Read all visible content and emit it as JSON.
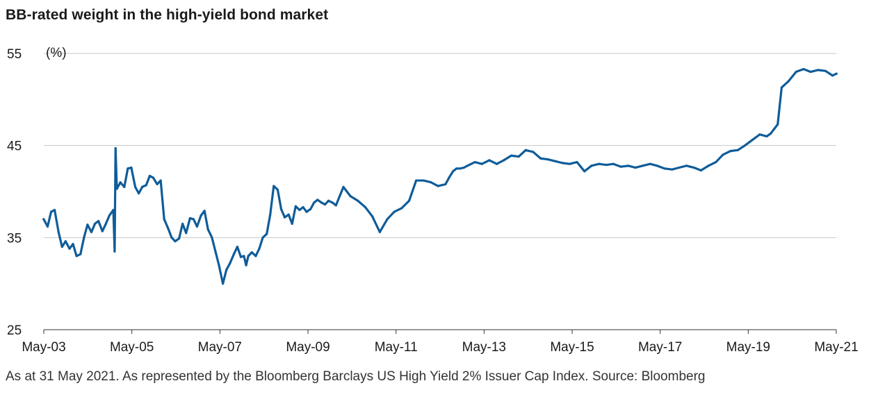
{
  "title": "BB-rated weight in the high-yield bond market",
  "footnote": "As at 31 May 2021. As represented by the Bloomberg Barclays US High Yield 2% Issuer Cap Index. Source: Bloomberg",
  "colors": {
    "line": "#0f5c99",
    "grid": "#c8c8c8",
    "axis": "#333333",
    "text": "#1a1a1a"
  },
  "chart_data": {
    "type": "line",
    "title": "BB-rated weight in the high-yield bond market",
    "ylabel": "(%)",
    "xlabel": "",
    "ylim": [
      25,
      55
    ],
    "yticks": [
      25,
      35,
      45,
      55
    ],
    "xlim": [
      2003.333,
      2021.417
    ],
    "xticks": [
      "May-03",
      "May-05",
      "May-07",
      "May-09",
      "May-11",
      "May-13",
      "May-15",
      "May-17",
      "May-19",
      "May-21"
    ],
    "grid": "horizontal",
    "legend": "none",
    "series": [
      {
        "x": [
          2003.33,
          2003.42,
          2003.5,
          2003.58,
          2003.67,
          2003.75,
          2003.83,
          2003.92,
          2004.0,
          2004.08,
          2004.17,
          2004.25,
          2004.33,
          2004.42,
          2004.5,
          2004.58,
          2004.67,
          2004.75,
          2004.83,
          2004.92,
          2004.95,
          2004.97,
          2005.0,
          2005.08,
          2005.17,
          2005.25,
          2005.33,
          2005.42,
          2005.5,
          2005.58,
          2005.67,
          2005.75,
          2005.83,
          2005.92,
          2006.0,
          2006.08,
          2006.17,
          2006.25,
          2006.33,
          2006.42,
          2006.5,
          2006.58,
          2006.67,
          2006.75,
          2006.83,
          2006.92,
          2007.0,
          2007.08,
          2007.17,
          2007.25,
          2007.33,
          2007.42,
          2007.5,
          2007.58,
          2007.67,
          2007.75,
          2007.83,
          2007.9,
          2007.95,
          2008.0,
          2008.08,
          2008.17,
          2008.25,
          2008.33,
          2008.42,
          2008.5,
          2008.58,
          2008.67,
          2008.75,
          2008.83,
          2008.92,
          2009.0,
          2009.08,
          2009.17,
          2009.25,
          2009.33,
          2009.42,
          2009.5,
          2009.58,
          2009.67,
          2009.75,
          2009.83,
          2009.92,
          2010.0,
          2010.17,
          2010.33,
          2010.5,
          2010.67,
          2010.83,
          2011.0,
          2011.17,
          2011.33,
          2011.5,
          2011.67,
          2011.83,
          2012.0,
          2012.17,
          2012.33,
          2012.5,
          2012.58,
          2012.67,
          2012.75,
          2012.83,
          2012.92,
          2013.0,
          2013.17,
          2013.33,
          2013.5,
          2013.67,
          2013.83,
          2014.0,
          2014.17,
          2014.33,
          2014.5,
          2014.67,
          2014.83,
          2015.0,
          2015.17,
          2015.33,
          2015.5,
          2015.67,
          2015.83,
          2016.0,
          2016.17,
          2016.33,
          2016.5,
          2016.67,
          2016.83,
          2017.0,
          2017.17,
          2017.33,
          2017.5,
          2017.67,
          2017.83,
          2018.0,
          2018.17,
          2018.33,
          2018.5,
          2018.67,
          2018.83,
          2019.0,
          2019.17,
          2019.33,
          2019.5,
          2019.67,
          2019.83,
          2019.92,
          2020.0,
          2020.08,
          2020.17,
          2020.33,
          2020.5,
          2020.67,
          2020.83,
          2021.0,
          2021.17,
          2021.33,
          2021.42
        ],
        "values": [
          37.0,
          36.2,
          37.8,
          38.0,
          35.6,
          34.0,
          34.6,
          33.8,
          34.3,
          33.0,
          33.2,
          35.0,
          36.4,
          35.6,
          36.5,
          36.8,
          35.7,
          36.5,
          37.4,
          38.0,
          33.5,
          44.7,
          40.3,
          41.0,
          40.5,
          42.5,
          42.6,
          40.5,
          39.8,
          40.5,
          40.7,
          41.7,
          41.5,
          40.8,
          41.2,
          37.0,
          36.0,
          35.0,
          34.6,
          34.9,
          36.5,
          35.5,
          37.1,
          37.0,
          36.2,
          37.4,
          37.9,
          35.9,
          35.0,
          33.5,
          32.0,
          30.0,
          31.5,
          32.2,
          33.2,
          34.0,
          32.9,
          33.0,
          32.0,
          33.0,
          33.4,
          33.0,
          33.8,
          35.0,
          35.4,
          37.5,
          40.6,
          40.2,
          38.1,
          37.2,
          37.5,
          36.5,
          38.4,
          38.0,
          38.3,
          37.8,
          38.1,
          38.8,
          39.1,
          38.8,
          38.6,
          39.0,
          38.8,
          38.5,
          40.5,
          39.5,
          39.0,
          38.3,
          37.3,
          35.6,
          37.0,
          37.8,
          38.2,
          39.0,
          41.2,
          41.2,
          41.0,
          40.6,
          40.8,
          41.5,
          42.2,
          42.5,
          42.5,
          42.6,
          42.8,
          43.2,
          43.0,
          43.4,
          43.0,
          43.4,
          43.9,
          43.8,
          44.5,
          44.3,
          43.6,
          43.5,
          43.3,
          43.1,
          43.0,
          43.2,
          42.2,
          42.8,
          43.0,
          42.9,
          43.0,
          42.7,
          42.8,
          42.6,
          42.8,
          43.0,
          42.8,
          42.5,
          42.4,
          42.6,
          42.8,
          42.6,
          42.3,
          42.8,
          43.2,
          44.0,
          44.4,
          44.5,
          45.0,
          45.6,
          46.2,
          46.0,
          46.3,
          46.8,
          47.3,
          51.3,
          52.0,
          53.0,
          53.3,
          53.0,
          53.2,
          53.1,
          52.6,
          52.8
        ]
      }
    ]
  }
}
